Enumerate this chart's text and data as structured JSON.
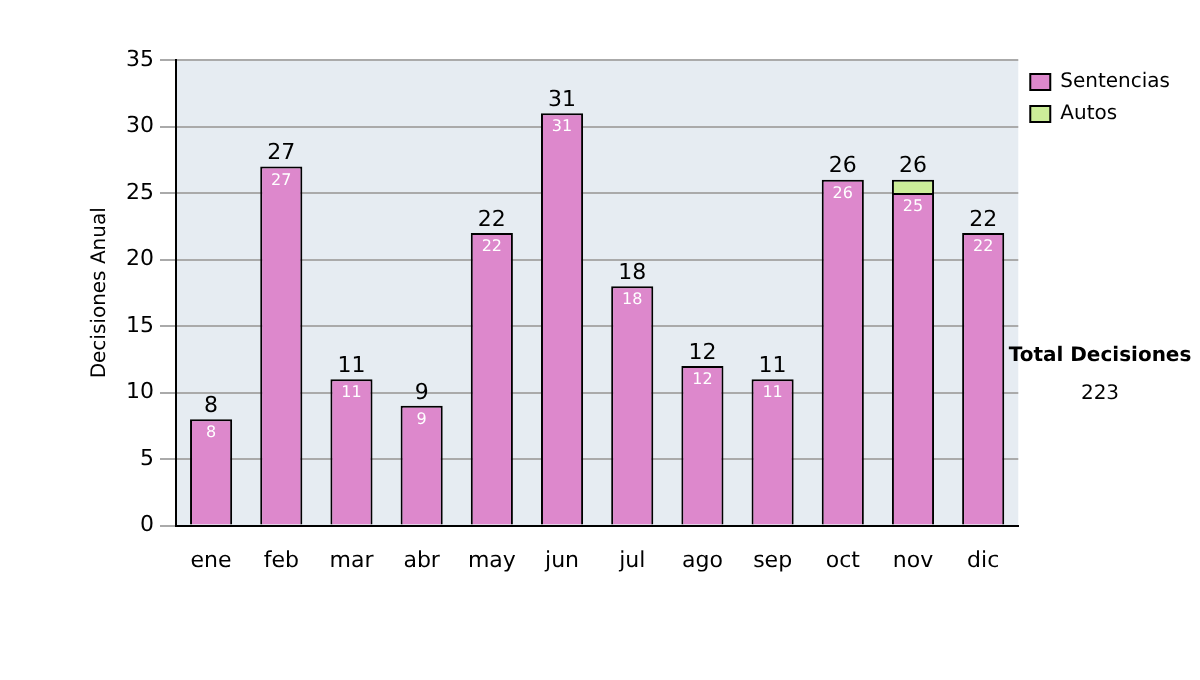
{
  "chart_data": {
    "type": "bar",
    "stacked": true,
    "ylabel": "Decisiones Anual",
    "categories": [
      "ene",
      "feb",
      "mar",
      "abr",
      "may",
      "jun",
      "jul",
      "ago",
      "sep",
      "oct",
      "nov",
      "dic"
    ],
    "series": [
      {
        "name": "Sentencias",
        "color": "#dd88cc",
        "values": [
          8,
          27,
          11,
          9,
          22,
          31,
          18,
          12,
          11,
          26,
          25,
          22
        ],
        "value_labels": [
          "8",
          "27",
          "11",
          "9",
          "22",
          "31",
          "18",
          "12",
          "11",
          "26",
          "25",
          "22"
        ]
      },
      {
        "name": "Autos",
        "color": "#ccee99",
        "values": [
          0,
          0,
          0,
          0,
          0,
          0,
          0,
          0,
          0,
          0,
          1,
          0
        ]
      }
    ],
    "totals": [
      "8",
      "27",
      "11",
      "9",
      "22",
      "31",
      "18",
      "12",
      "11",
      "26",
      "26",
      "22"
    ],
    "ylim": [
      0,
      35
    ],
    "yticks": [
      0,
      5,
      10,
      15,
      20,
      25,
      30,
      35
    ],
    "grid": "y",
    "legend": "right",
    "annotations": [
      "Total Decisiones",
      "223"
    ]
  }
}
